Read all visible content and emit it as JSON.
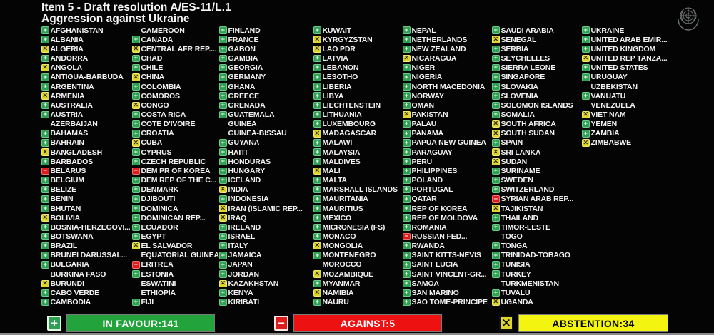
{
  "header": {
    "title_line1": "Item 5 - Draft resolution A/ES-11/L.1",
    "title_line2": "Aggression against Ukraine"
  },
  "icons": {
    "favour_glyph": "+",
    "against_glyph": "−",
    "abstention_glyph": "✕",
    "un_emblem": "un-emblem"
  },
  "colors": {
    "in_favour": "#2fa053",
    "in_favour_bar": "#23a33b",
    "against": "#dd1d1d",
    "against_bar": "#ee1111",
    "abstention": "#ddd52b",
    "abstention_bar": "#f4f411",
    "background": "#040404",
    "text": "#f2f2f2"
  },
  "footer": {
    "in_favour": {
      "label": "IN FAVOUR:141",
      "count": 141
    },
    "against": {
      "label": "AGAINST:5",
      "count": 5
    },
    "abstention": {
      "label": "ABSTENTION:34",
      "count": 34
    }
  },
  "columns": [
    [
      {
        "name": "AFGHANISTAN",
        "vote": "Y"
      },
      {
        "name": "ALBANIA",
        "vote": "Y"
      },
      {
        "name": "ALGERIA",
        "vote": "A"
      },
      {
        "name": "ANDORRA",
        "vote": "Y"
      },
      {
        "name": "ANGOLA",
        "vote": "A"
      },
      {
        "name": "ANTIGUA-BARBUDA",
        "vote": "Y"
      },
      {
        "name": "ARGENTINA",
        "vote": "Y"
      },
      {
        "name": "ARMENIA",
        "vote": "A"
      },
      {
        "name": "AUSTRALIA",
        "vote": "Y"
      },
      {
        "name": "AUSTRIA",
        "vote": "Y"
      },
      {
        "name": "AZERBAIJAN",
        "vote": "-"
      },
      {
        "name": "BAHAMAS",
        "vote": "Y"
      },
      {
        "name": "BAHRAIN",
        "vote": "Y"
      },
      {
        "name": "BANGLADESH",
        "vote": "A"
      },
      {
        "name": "BARBADOS",
        "vote": "Y"
      },
      {
        "name": "BELARUS",
        "vote": "N"
      },
      {
        "name": "BELGIUM",
        "vote": "Y"
      },
      {
        "name": "BELIZE",
        "vote": "Y"
      },
      {
        "name": "BENIN",
        "vote": "Y"
      },
      {
        "name": "BHUTAN",
        "vote": "Y"
      },
      {
        "name": "BOLIVIA",
        "vote": "A"
      },
      {
        "name": "BOSNIA-HERZEGOVI...",
        "vote": "Y"
      },
      {
        "name": "BOTSWANA",
        "vote": "Y"
      },
      {
        "name": "BRAZIL",
        "vote": "Y"
      },
      {
        "name": "BRUNEI DARUSSAL...",
        "vote": "Y"
      },
      {
        "name": "BULGARIA",
        "vote": "Y"
      },
      {
        "name": "BURKINA FASO",
        "vote": "-"
      },
      {
        "name": "BURUNDI",
        "vote": "A"
      },
      {
        "name": "CABO VERDE",
        "vote": "Y"
      },
      {
        "name": "CAMBODIA",
        "vote": "Y"
      }
    ],
    [
      {
        "name": "CAMEROON",
        "vote": "-"
      },
      {
        "name": "CANADA",
        "vote": "Y"
      },
      {
        "name": "CENTRAL AFR REP....",
        "vote": "A"
      },
      {
        "name": "CHAD",
        "vote": "Y"
      },
      {
        "name": "CHILE",
        "vote": "Y"
      },
      {
        "name": "CHINA",
        "vote": "A"
      },
      {
        "name": "COLOMBIA",
        "vote": "Y"
      },
      {
        "name": "COMOROS",
        "vote": "Y"
      },
      {
        "name": "CONGO",
        "vote": "A"
      },
      {
        "name": "COSTA RICA",
        "vote": "Y"
      },
      {
        "name": "COTE D'IVOIRE",
        "vote": "Y"
      },
      {
        "name": "CROATIA",
        "vote": "Y"
      },
      {
        "name": "CUBA",
        "vote": "A"
      },
      {
        "name": "CYPRUS",
        "vote": "Y"
      },
      {
        "name": "CZECH REPUBLIC",
        "vote": "Y"
      },
      {
        "name": "DEM PR OF KOREA",
        "vote": "N"
      },
      {
        "name": "DEM REP OF THE C...",
        "vote": "Y"
      },
      {
        "name": "DENMARK",
        "vote": "Y"
      },
      {
        "name": "DJIBOUTI",
        "vote": "Y"
      },
      {
        "name": "DOMINICA",
        "vote": "Y"
      },
      {
        "name": "DOMINICAN REP...",
        "vote": "Y"
      },
      {
        "name": "ECUADOR",
        "vote": "Y"
      },
      {
        "name": "EGYPT",
        "vote": "Y"
      },
      {
        "name": "EL SALVADOR",
        "vote": "A"
      },
      {
        "name": "EQUATORIAL GUINEA",
        "vote": "-"
      },
      {
        "name": "ERITREA",
        "vote": "N"
      },
      {
        "name": "ESTONIA",
        "vote": "Y"
      },
      {
        "name": "ESWATINI",
        "vote": "-"
      },
      {
        "name": "ETHIOPIA",
        "vote": "-"
      },
      {
        "name": "FIJI",
        "vote": "Y"
      }
    ],
    [
      {
        "name": "FINLAND",
        "vote": "Y"
      },
      {
        "name": "FRANCE",
        "vote": "Y"
      },
      {
        "name": "GABON",
        "vote": "Y"
      },
      {
        "name": "GAMBIA",
        "vote": "Y"
      },
      {
        "name": "GEORGIA",
        "vote": "Y"
      },
      {
        "name": "GERMANY",
        "vote": "Y"
      },
      {
        "name": "GHANA",
        "vote": "Y"
      },
      {
        "name": "GREECE",
        "vote": "Y"
      },
      {
        "name": "GRENADA",
        "vote": "Y"
      },
      {
        "name": "GUATEMALA",
        "vote": "Y"
      },
      {
        "name": "GUINEA",
        "vote": "-"
      },
      {
        "name": "GUINEA-BISSAU",
        "vote": "-"
      },
      {
        "name": "GUYANA",
        "vote": "Y"
      },
      {
        "name": "HAITI",
        "vote": "Y"
      },
      {
        "name": "HONDURAS",
        "vote": "Y"
      },
      {
        "name": "HUNGARY",
        "vote": "Y"
      },
      {
        "name": "ICELAND",
        "vote": "Y"
      },
      {
        "name": "INDIA",
        "vote": "A"
      },
      {
        "name": "INDONESIA",
        "vote": "Y"
      },
      {
        "name": "IRAN (ISLAMIC REP...",
        "vote": "A"
      },
      {
        "name": "IRAQ",
        "vote": "A"
      },
      {
        "name": "IRELAND",
        "vote": "Y"
      },
      {
        "name": "ISRAEL",
        "vote": "Y"
      },
      {
        "name": "ITALY",
        "vote": "Y"
      },
      {
        "name": "JAMAICA",
        "vote": "Y"
      },
      {
        "name": "JAPAN",
        "vote": "Y"
      },
      {
        "name": "JORDAN",
        "vote": "Y"
      },
      {
        "name": "KAZAKHSTAN",
        "vote": "A"
      },
      {
        "name": "KENYA",
        "vote": "Y"
      },
      {
        "name": "KIRIBATI",
        "vote": "Y"
      }
    ],
    [
      {
        "name": "KUWAIT",
        "vote": "Y"
      },
      {
        "name": "KYRGYZSTAN",
        "vote": "A"
      },
      {
        "name": "LAO PDR",
        "vote": "A"
      },
      {
        "name": "LATVIA",
        "vote": "Y"
      },
      {
        "name": "LEBANON",
        "vote": "Y"
      },
      {
        "name": "LESOTHO",
        "vote": "Y"
      },
      {
        "name": "LIBERIA",
        "vote": "Y"
      },
      {
        "name": "LIBYA",
        "vote": "Y"
      },
      {
        "name": "LIECHTENSTEIN",
        "vote": "Y"
      },
      {
        "name": "LITHUANIA",
        "vote": "Y"
      },
      {
        "name": "LUXEMBOURG",
        "vote": "Y"
      },
      {
        "name": "MADAGASCAR",
        "vote": "A"
      },
      {
        "name": "MALAWI",
        "vote": "Y"
      },
      {
        "name": "MALAYSIA",
        "vote": "Y"
      },
      {
        "name": "MALDIVES",
        "vote": "Y"
      },
      {
        "name": "MALI",
        "vote": "A"
      },
      {
        "name": "MALTA",
        "vote": "Y"
      },
      {
        "name": "MARSHALL ISLANDS",
        "vote": "Y"
      },
      {
        "name": "MAURITANIA",
        "vote": "Y"
      },
      {
        "name": "MAURITIUS",
        "vote": "Y"
      },
      {
        "name": "MEXICO",
        "vote": "Y"
      },
      {
        "name": "MICRONESIA (FS)",
        "vote": "Y"
      },
      {
        "name": "MONACO",
        "vote": "Y"
      },
      {
        "name": "MONGOLIA",
        "vote": "A"
      },
      {
        "name": "MONTENEGRO",
        "vote": "Y"
      },
      {
        "name": "MOROCCO",
        "vote": "-"
      },
      {
        "name": "MOZAMBIQUE",
        "vote": "A"
      },
      {
        "name": "MYANMAR",
        "vote": "Y"
      },
      {
        "name": "NAMIBIA",
        "vote": "A"
      },
      {
        "name": "NAURU",
        "vote": "Y"
      }
    ],
    [
      {
        "name": "NEPAL",
        "vote": "Y"
      },
      {
        "name": "NETHERLANDS",
        "vote": "Y"
      },
      {
        "name": "NEW ZEALAND",
        "vote": "Y"
      },
      {
        "name": "NICARAGUA",
        "vote": "A"
      },
      {
        "name": "NIGER",
        "vote": "Y"
      },
      {
        "name": "NIGERIA",
        "vote": "Y"
      },
      {
        "name": "NORTH MACEDONIA",
        "vote": "Y"
      },
      {
        "name": "NORWAY",
        "vote": "Y"
      },
      {
        "name": "OMAN",
        "vote": "Y"
      },
      {
        "name": "PAKISTAN",
        "vote": "A"
      },
      {
        "name": "PALAU",
        "vote": "Y"
      },
      {
        "name": "PANAMA",
        "vote": "Y"
      },
      {
        "name": "PAPUA NEW GUINEA",
        "vote": "Y"
      },
      {
        "name": "PARAGUAY",
        "vote": "Y"
      },
      {
        "name": "PERU",
        "vote": "Y"
      },
      {
        "name": "PHILIPPINES",
        "vote": "Y"
      },
      {
        "name": "POLAND",
        "vote": "Y"
      },
      {
        "name": "PORTUGAL",
        "vote": "Y"
      },
      {
        "name": "QATAR",
        "vote": "Y"
      },
      {
        "name": "REP OF KOREA",
        "vote": "Y"
      },
      {
        "name": "REP OF MOLDOVA",
        "vote": "Y"
      },
      {
        "name": "ROMANIA",
        "vote": "Y"
      },
      {
        "name": "RUSSIAN FED...",
        "vote": "N"
      },
      {
        "name": "RWANDA",
        "vote": "Y"
      },
      {
        "name": "SAINT KITTS-NEVIS",
        "vote": "Y"
      },
      {
        "name": "SAINT LUCIA",
        "vote": "Y"
      },
      {
        "name": "SAINT VINCENT-GR...",
        "vote": "Y"
      },
      {
        "name": "SAMOA",
        "vote": "Y"
      },
      {
        "name": "SAN MARINO",
        "vote": "Y"
      },
      {
        "name": "SAO TOME-PRINCIPE",
        "vote": "Y"
      }
    ],
    [
      {
        "name": "SAUDI ARABIA",
        "vote": "Y"
      },
      {
        "name": "SENEGAL",
        "vote": "A"
      },
      {
        "name": "SERBIA",
        "vote": "Y"
      },
      {
        "name": "SEYCHELLES",
        "vote": "Y"
      },
      {
        "name": "SIERRA LEONE",
        "vote": "Y"
      },
      {
        "name": "SINGAPORE",
        "vote": "Y"
      },
      {
        "name": "SLOVAKIA",
        "vote": "Y"
      },
      {
        "name": "SLOVENIA",
        "vote": "Y"
      },
      {
        "name": "SOLOMON ISLANDS",
        "vote": "Y"
      },
      {
        "name": "SOMALIA",
        "vote": "Y"
      },
      {
        "name": "SOUTH AFRICA",
        "vote": "A"
      },
      {
        "name": "SOUTH SUDAN",
        "vote": "A"
      },
      {
        "name": "SPAIN",
        "vote": "Y"
      },
      {
        "name": "SRI LANKA",
        "vote": "A"
      },
      {
        "name": "SUDAN",
        "vote": "A"
      },
      {
        "name": "SURINAME",
        "vote": "Y"
      },
      {
        "name": "SWEDEN",
        "vote": "Y"
      },
      {
        "name": "SWITZERLAND",
        "vote": "Y"
      },
      {
        "name": "SYRIAN ARAB REP...",
        "vote": "N"
      },
      {
        "name": "TAJIKISTAN",
        "vote": "A"
      },
      {
        "name": "THAILAND",
        "vote": "Y"
      },
      {
        "name": "TIMOR-LESTE",
        "vote": "Y"
      },
      {
        "name": "TOGO",
        "vote": "-"
      },
      {
        "name": "TONGA",
        "vote": "Y"
      },
      {
        "name": "TRINIDAD-TOBAGO",
        "vote": "Y"
      },
      {
        "name": "TUNISIA",
        "vote": "Y"
      },
      {
        "name": "TURKEY",
        "vote": "Y"
      },
      {
        "name": "TURKMENISTAN",
        "vote": "-"
      },
      {
        "name": "TUVALU",
        "vote": "Y"
      },
      {
        "name": "UGANDA",
        "vote": "A"
      }
    ],
    [
      {
        "name": "UKRAINE",
        "vote": "Y"
      },
      {
        "name": "UNITED ARAB EMIR...",
        "vote": "Y"
      },
      {
        "name": "UNITED KINGDOM",
        "vote": "Y"
      },
      {
        "name": "UNITED REP TANZA...",
        "vote": "A"
      },
      {
        "name": "UNITED STATES",
        "vote": "Y"
      },
      {
        "name": "URUGUAY",
        "vote": "Y"
      },
      {
        "name": "UZBEKISTAN",
        "vote": "-"
      },
      {
        "name": "VANUATU",
        "vote": "Y"
      },
      {
        "name": "VENEZUELA",
        "vote": "-"
      },
      {
        "name": "VIET NAM",
        "vote": "A"
      },
      {
        "name": "YEMEN",
        "vote": "Y"
      },
      {
        "name": "ZAMBIA",
        "vote": "Y"
      },
      {
        "name": "ZIMBABWE",
        "vote": "A"
      }
    ]
  ]
}
